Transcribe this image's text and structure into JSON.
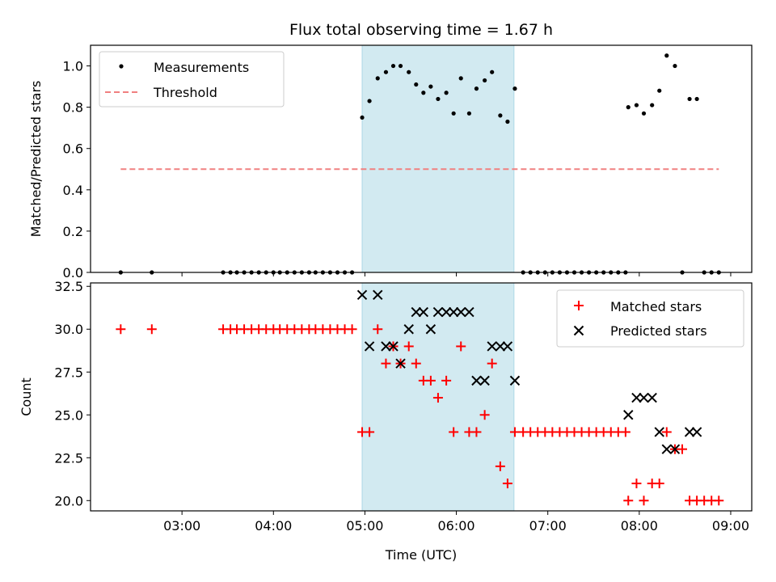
{
  "chart_data": {
    "title": "Flux total observing time = 1.67 h",
    "xlabel": "Time (UTC)",
    "x_tick_labels": [
      "03:00",
      "04:00",
      "05:00",
      "06:00",
      "07:00",
      "08:00",
      "09:00"
    ],
    "x_tick_hours": [
      3,
      4,
      5,
      6,
      7,
      8,
      9
    ],
    "xlim_hours": [
      2.0,
      9.23
    ],
    "shaded_interval_hours": [
      4.97,
      6.63
    ],
    "colors": {
      "measurements": "#000000",
      "threshold": "#f08080",
      "matched": "#ff0000",
      "predicted": "#000000",
      "shade": "#add8e6"
    },
    "panels": [
      {
        "type": "scatter",
        "ylabel": "Matched/Predicted stars",
        "ylim": [
          0,
          1.1
        ],
        "y_tick_labels": [
          "0.0",
          "0.2",
          "0.4",
          "0.6",
          "0.8",
          "1.0"
        ],
        "y_ticks": [
          0,
          0.2,
          0.4,
          0.6,
          0.8,
          1.0
        ],
        "legend_position": "top-left",
        "series": [
          {
            "name": "Measurements",
            "marker": "dot",
            "points": [
              [
                2.33,
                0
              ],
              [
                2.67,
                0
              ],
              [
                3.45,
                0
              ],
              [
                3.53,
                0
              ],
              [
                3.6,
                0
              ],
              [
                3.68,
                0
              ],
              [
                3.76,
                0
              ],
              [
                3.84,
                0
              ],
              [
                3.92,
                0
              ],
              [
                4.0,
                0
              ],
              [
                4.07,
                0
              ],
              [
                4.15,
                0
              ],
              [
                4.23,
                0
              ],
              [
                4.31,
                0
              ],
              [
                4.39,
                0
              ],
              [
                4.46,
                0
              ],
              [
                4.54,
                0
              ],
              [
                4.62,
                0
              ],
              [
                4.7,
                0
              ],
              [
                4.78,
                0
              ],
              [
                4.86,
                0
              ],
              [
                4.97,
                0.75
              ],
              [
                5.05,
                0.83
              ],
              [
                5.14,
                0.94
              ],
              [
                5.23,
                0.97
              ],
              [
                5.31,
                1.0
              ],
              [
                5.39,
                1.0
              ],
              [
                5.48,
                0.97
              ],
              [
                5.56,
                0.91
              ],
              [
                5.64,
                0.87
              ],
              [
                5.72,
                0.9
              ],
              [
                5.8,
                0.84
              ],
              [
                5.89,
                0.87
              ],
              [
                5.97,
                0.77
              ],
              [
                6.05,
                0.94
              ],
              [
                6.14,
                0.77
              ],
              [
                6.22,
                0.89
              ],
              [
                6.31,
                0.93
              ],
              [
                6.39,
                0.97
              ],
              [
                6.48,
                0.76
              ],
              [
                6.56,
                0.73
              ],
              [
                6.64,
                0.89
              ],
              [
                6.73,
                0
              ],
              [
                6.81,
                0
              ],
              [
                6.89,
                0
              ],
              [
                6.97,
                0
              ],
              [
                7.05,
                0
              ],
              [
                7.13,
                0
              ],
              [
                7.21,
                0
              ],
              [
                7.29,
                0
              ],
              [
                7.37,
                0
              ],
              [
                7.45,
                0
              ],
              [
                7.53,
                0
              ],
              [
                7.61,
                0
              ],
              [
                7.69,
                0
              ],
              [
                7.77,
                0
              ],
              [
                7.85,
                0
              ],
              [
                7.88,
                0.8
              ],
              [
                7.97,
                0.81
              ],
              [
                8.05,
                0.77
              ],
              [
                8.14,
                0.81
              ],
              [
                8.22,
                0.88
              ],
              [
                8.3,
                1.05
              ],
              [
                8.39,
                1.0
              ],
              [
                8.47,
                0
              ],
              [
                8.55,
                0.84
              ],
              [
                8.63,
                0.84
              ],
              [
                8.71,
                0
              ],
              [
                8.79,
                0
              ],
              [
                8.87,
                0
              ]
            ]
          },
          {
            "name": "Threshold",
            "marker": "dashed-line",
            "points": [
              [
                2.33,
                0.5
              ],
              [
                8.87,
                0.5
              ]
            ]
          }
        ]
      },
      {
        "type": "scatter",
        "ylabel": "Count",
        "ylim": [
          19.4,
          32.7
        ],
        "y_tick_labels": [
          "20.0",
          "22.5",
          "25.0",
          "27.5",
          "30.0",
          "32.5"
        ],
        "y_ticks": [
          20,
          22.5,
          25,
          27.5,
          30,
          32.5
        ],
        "legend_position": "top-right",
        "series": [
          {
            "name": "Matched stars",
            "marker": "plus",
            "points": [
              [
                2.33,
                30
              ],
              [
                2.67,
                30
              ],
              [
                3.45,
                30
              ],
              [
                3.53,
                30
              ],
              [
                3.6,
                30
              ],
              [
                3.68,
                30
              ],
              [
                3.76,
                30
              ],
              [
                3.84,
                30
              ],
              [
                3.92,
                30
              ],
              [
                4.0,
                30
              ],
              [
                4.07,
                30
              ],
              [
                4.15,
                30
              ],
              [
                4.23,
                30
              ],
              [
                4.31,
                30
              ],
              [
                4.39,
                30
              ],
              [
                4.46,
                30
              ],
              [
                4.54,
                30
              ],
              [
                4.62,
                30
              ],
              [
                4.7,
                30
              ],
              [
                4.78,
                30
              ],
              [
                4.86,
                30
              ],
              [
                4.97,
                24
              ],
              [
                5.05,
                24
              ],
              [
                5.14,
                30
              ],
              [
                5.23,
                28
              ],
              [
                5.31,
                29
              ],
              [
                5.39,
                28
              ],
              [
                5.48,
                29
              ],
              [
                5.56,
                28
              ],
              [
                5.64,
                27
              ],
              [
                5.72,
                27
              ],
              [
                5.8,
                26
              ],
              [
                5.89,
                27
              ],
              [
                5.97,
                24
              ],
              [
                6.05,
                29
              ],
              [
                6.14,
                24
              ],
              [
                6.22,
                24
              ],
              [
                6.31,
                25
              ],
              [
                6.39,
                28
              ],
              [
                6.48,
                22
              ],
              [
                6.56,
                21
              ],
              [
                6.64,
                24
              ],
              [
                6.73,
                24
              ],
              [
                6.81,
                24
              ],
              [
                6.89,
                24
              ],
              [
                6.97,
                24
              ],
              [
                7.05,
                24
              ],
              [
                7.13,
                24
              ],
              [
                7.21,
                24
              ],
              [
                7.29,
                24
              ],
              [
                7.37,
                24
              ],
              [
                7.45,
                24
              ],
              [
                7.53,
                24
              ],
              [
                7.61,
                24
              ],
              [
                7.69,
                24
              ],
              [
                7.77,
                24
              ],
              [
                7.85,
                24
              ],
              [
                7.88,
                20
              ],
              [
                7.97,
                21
              ],
              [
                8.05,
                20
              ],
              [
                8.14,
                21
              ],
              [
                8.22,
                21
              ],
              [
                8.3,
                24
              ],
              [
                8.39,
                23
              ],
              [
                8.47,
                23
              ],
              [
                8.55,
                20
              ],
              [
                8.63,
                20
              ],
              [
                8.71,
                20
              ],
              [
                8.79,
                20
              ],
              [
                8.87,
                20
              ]
            ]
          },
          {
            "name": "Predicted stars",
            "marker": "x",
            "points": [
              [
                4.97,
                32
              ],
              [
                5.05,
                29
              ],
              [
                5.14,
                32
              ],
              [
                5.23,
                29
              ],
              [
                5.31,
                29
              ],
              [
                5.39,
                28
              ],
              [
                5.48,
                30
              ],
              [
                5.56,
                31
              ],
              [
                5.64,
                31
              ],
              [
                5.72,
                30
              ],
              [
                5.8,
                31
              ],
              [
                5.89,
                31
              ],
              [
                5.97,
                31
              ],
              [
                6.05,
                31
              ],
              [
                6.14,
                31
              ],
              [
                6.22,
                27
              ],
              [
                6.31,
                27
              ],
              [
                6.39,
                29
              ],
              [
                6.48,
                29
              ],
              [
                6.56,
                29
              ],
              [
                6.64,
                27
              ],
              [
                7.88,
                25
              ],
              [
                7.97,
                26
              ],
              [
                8.05,
                26
              ],
              [
                8.14,
                26
              ],
              [
                8.22,
                24
              ],
              [
                8.3,
                23
              ],
              [
                8.39,
                23
              ],
              [
                8.55,
                24
              ],
              [
                8.63,
                24
              ]
            ]
          }
        ]
      }
    ]
  }
}
